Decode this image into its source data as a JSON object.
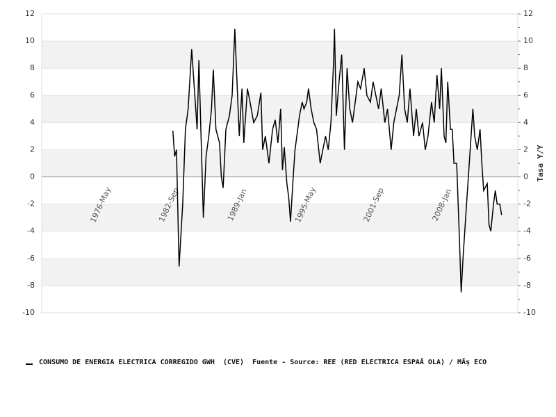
{
  "chart_data": {
    "type": "line",
    "x": [
      "1983-Jan",
      "1983-Mar",
      "1983-May",
      "1983-Aug",
      "1983-Dec",
      "1984-Mar",
      "1984-Jun",
      "1984-Oct",
      "1985-Apr",
      "1985-Jun",
      "1985-Nov",
      "1986-Feb",
      "1986-May",
      "1986-Aug",
      "1986-Oct",
      "1987-Jan",
      "1987-May",
      "1987-Jul",
      "1987-Sep",
      "1987-Dec",
      "1988-Apr",
      "1988-Jul",
      "1988-Oct",
      "1989-Jan",
      "1989-Mar",
      "1989-Jun",
      "1989-Aug",
      "1989-Dec",
      "1990-Mar",
      "1990-Jul",
      "1990-Nov",
      "1991-Mar",
      "1991-May",
      "1991-Aug",
      "1991-Dec",
      "1992-Apr",
      "1992-Jul",
      "1992-Oct",
      "1993-Jan",
      "1993-Mar",
      "1993-May",
      "1993-Aug",
      "1993-Oct",
      "1993-Dec",
      "1994-Mar",
      "1994-May",
      "1994-Jul",
      "1994-Oct",
      "1995-Jan",
      "1995-Mar",
      "1995-Jun",
      "1995-Aug",
      "1995-Nov",
      "1996-Feb",
      "1996-May",
      "1996-Sep",
      "1996-Dec",
      "1997-Mar",
      "1997-Jun",
      "1997-Sep",
      "1997-Dec",
      "1998-Jan",
      "1998-Mar",
      "1998-Jun",
      "1998-Sep",
      "1998-Dec",
      "1999-Mar",
      "1999-Jun",
      "1999-Sep",
      "1999-Dec",
      "2000-Mar",
      "2000-Jun",
      "2000-Oct",
      "2001-Jan",
      "2001-May",
      "2001-Aug",
      "2001-Nov",
      "2002-Feb",
      "2002-May",
      "2002-Sep",
      "2002-Dec",
      "2003-Apr",
      "2003-Jul",
      "2003-Oct",
      "2004-Jan",
      "2004-Apr",
      "2004-Jul",
      "2004-Oct",
      "2005-Jan",
      "2005-May",
      "2005-Aug",
      "2005-Nov",
      "2006-Mar",
      "2006-Jun",
      "2006-Sep",
      "2007-Jan",
      "2007-Apr",
      "2007-Jul",
      "2007-Oct",
      "2007-Dec",
      "2008-Mar",
      "2008-May",
      "2008-Jul",
      "2008-Oct",
      "2008-Dec",
      "2009-Feb",
      "2009-May",
      "2009-Aug",
      "2009-Oct",
      "2009-Dec",
      "2010-Mar",
      "2010-Jun",
      "2010-Aug",
      "2010-Nov",
      "2011-Jan",
      "2011-Apr",
      "2011-Jul",
      "2011-Sep",
      "2011-Nov",
      "2012-Mar",
      "2012-May",
      "2012-Jul",
      "2012-Oct",
      "2012-Dec",
      "2013-Feb",
      "2013-May",
      "2013-Jul"
    ],
    "series": [
      {
        "name": "CONSUMO DE ENERGIA ELECTRICA CORREGIDO GWH  (CVE)  Fuente - Source: REE (RED ELECTRICA ESPAÃ OLA) / MÃş ECO",
        "color": "#000000",
        "values": [
          3.4,
          1.5,
          2,
          -6.6,
          -2,
          3.5,
          5,
          9.4,
          3.5,
          8.6,
          -3,
          1.5,
          3,
          5,
          7.9,
          3.5,
          2.5,
          0,
          -0.8,
          3.5,
          4.5,
          6,
          10.9,
          6,
          3,
          6.5,
          2.5,
          6.5,
          5.5,
          4,
          4.5,
          6.2,
          2,
          3,
          1,
          3.5,
          4.2,
          2.5,
          5,
          0.5,
          2.2,
          -0.5,
          -1.5,
          -3.3,
          0,
          2,
          3,
          4.5,
          5.5,
          5,
          5.5,
          6.5,
          5,
          4,
          3.5,
          1,
          2,
          3,
          2,
          4,
          8.5,
          10.9,
          4.5,
          7,
          9,
          2,
          8,
          5,
          4,
          5.5,
          7,
          6.5,
          8,
          6,
          5.5,
          7,
          6,
          5,
          6.5,
          4,
          5,
          2,
          4,
          5,
          6,
          9,
          5,
          4,
          6.5,
          3,
          5,
          3,
          4,
          2,
          3,
          5.5,
          4,
          7.5,
          5,
          8,
          3,
          2.5,
          7,
          3.5,
          3.5,
          1,
          1,
          -4.5,
          -8.5,
          -6,
          -3,
          0,
          2,
          5,
          3,
          2,
          3.5,
          1,
          -1,
          -0.5,
          -3.5,
          -4,
          -2,
          -1,
          -2,
          -2,
          -2.8
        ]
      }
    ],
    "xlim": [
      "1970-Nov",
      "2015-Jan"
    ],
    "xticks": [
      "1976-May",
      "1982-Sep",
      "1989-Jan",
      "1995-May",
      "2001-Sep",
      "2008-Jan"
    ],
    "ylim": [
      -10,
      12
    ],
    "yticks": [
      -10,
      -8,
      -6,
      -4,
      -2,
      0,
      2,
      4,
      6,
      8,
      10,
      12
    ],
    "y2lim": [
      -10,
      12
    ],
    "y2ticks": [
      -10,
      -8,
      -6,
      -4,
      -2,
      0,
      2,
      4,
      6,
      8,
      10,
      12
    ],
    "y2label": "Tasa Y/Y",
    "grid": true,
    "legend": "bottom"
  }
}
